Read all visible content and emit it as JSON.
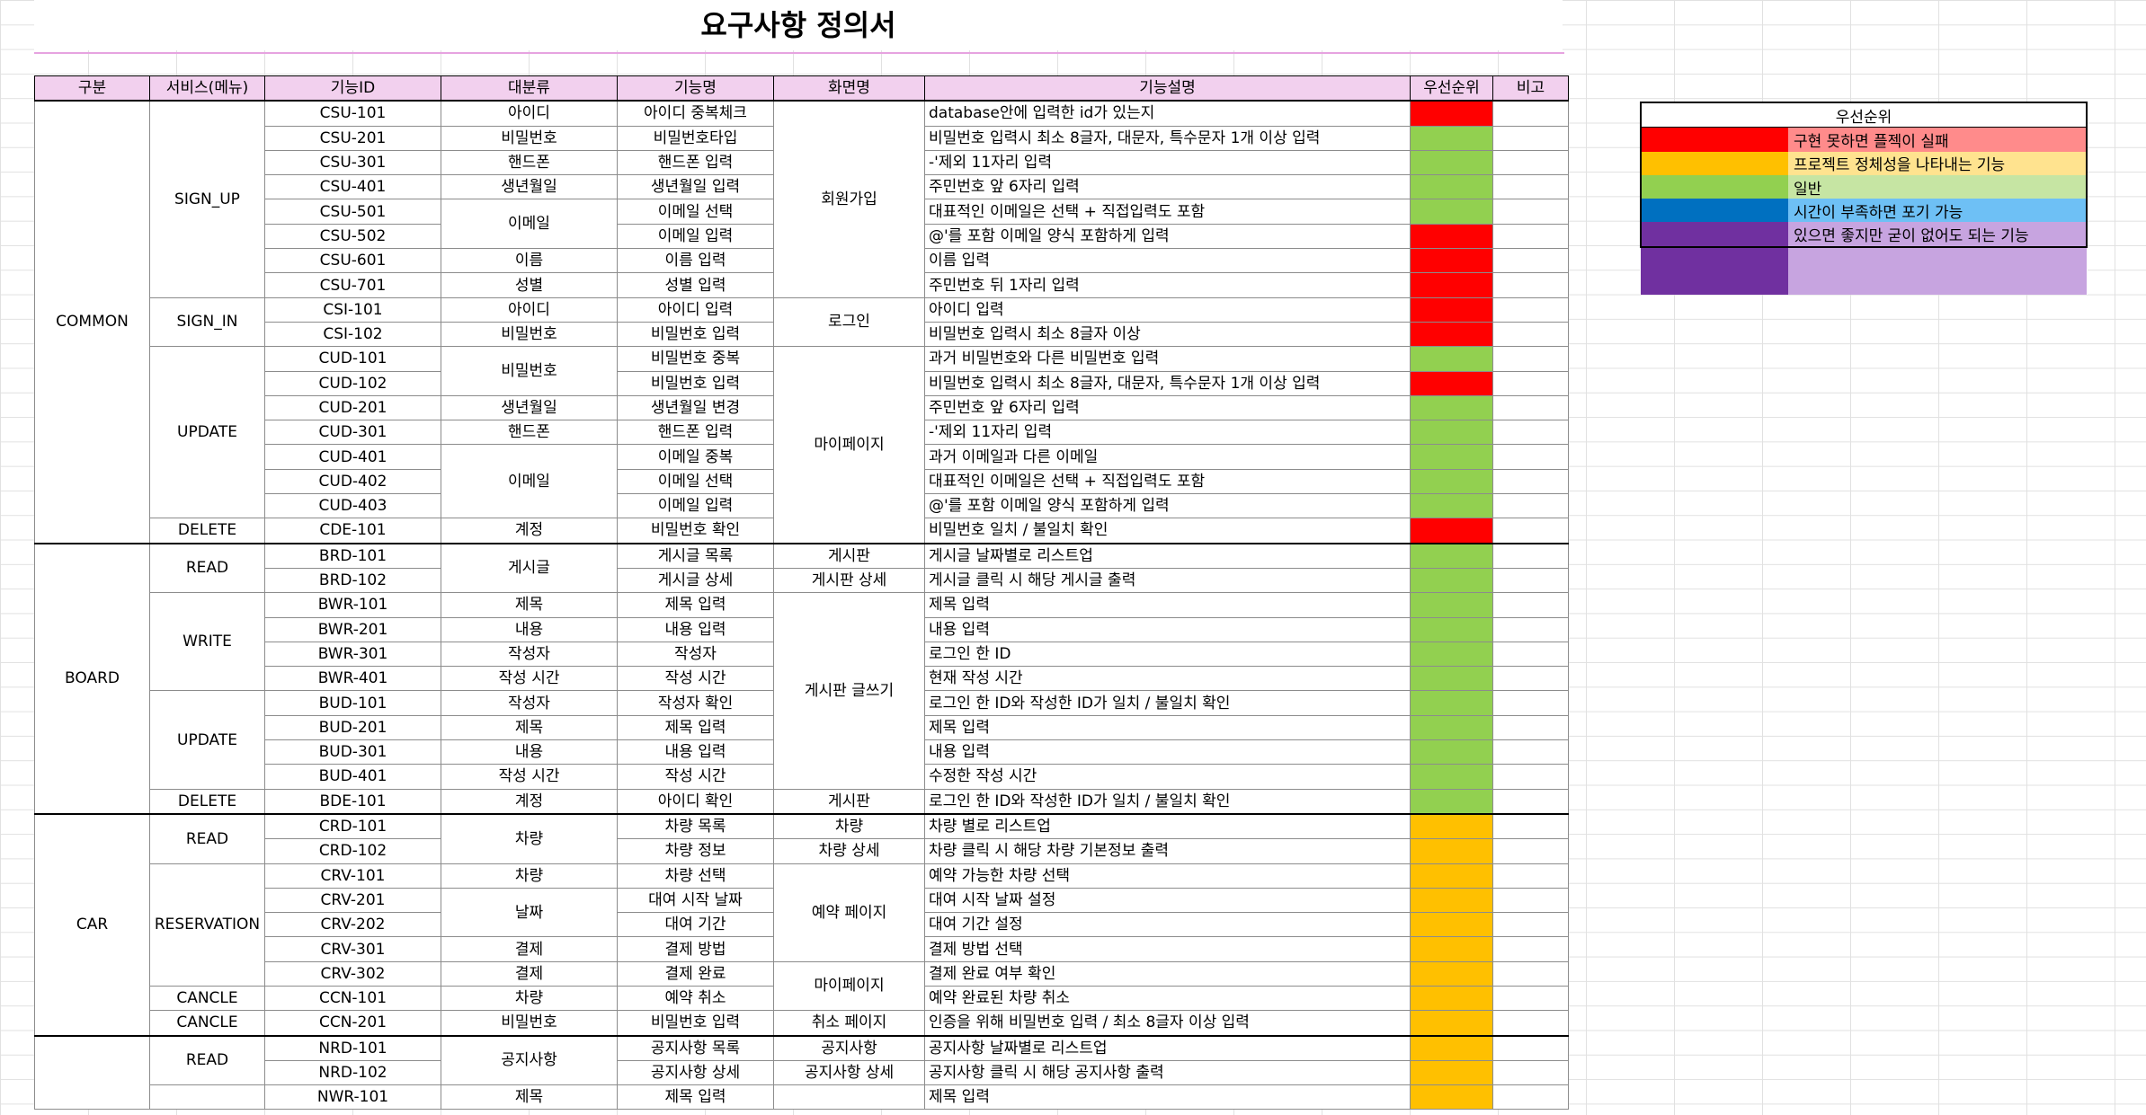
{
  "title": "요구사항 정의서",
  "colors": {
    "red": "#ff0000",
    "orange": "#ffc000",
    "green": "#92d050",
    "blue": "#0070c0",
    "purple": "#7030a0"
  },
  "legend": {
    "title": "우선순위",
    "items": [
      {
        "label": "구현 못하면 플젝이 실패",
        "color": "#ff0000",
        "tint": "#ff8b8b"
      },
      {
        "label": "프로젝트 정체성을 나타내는 기능",
        "color": "#ffc000",
        "tint": "#ffe38f"
      },
      {
        "label": "일반",
        "color": "#92d050",
        "tint": "#c6e5a3"
      },
      {
        "label": "시간이 부족하면 포기 가능",
        "color": "#0070c0",
        "tint": "#6ec0f5"
      },
      {
        "label": "있으면 좋지만 굳이 없어도 되는 기능",
        "color": "#7030a0",
        "tint": "#c7a4e0"
      }
    ]
  },
  "table": {
    "headers": [
      "구분",
      "서비스(메뉴)",
      "기능ID",
      "대분류",
      "기능명",
      "화면명",
      "기능설명",
      "우선순위",
      "비고"
    ],
    "groups": [
      {
        "name": "COMMON",
        "services": [
          {
            "name": "SIGN_UP",
            "rows": [
              {
                "id": "CSU-101",
                "cat": "아이디",
                "func": "아이디 중복체크",
                "screen": "회원가입",
                "desc": "database안에 입력한 id가 있는지",
                "pri": "red"
              },
              {
                "id": "CSU-201",
                "cat": "비밀번호",
                "func": "비밀번호타입",
                "desc": "비밀번호 입력시 최소 8글자, 대문자, 특수문자 1개 이상 입력",
                "pri": "green"
              },
              {
                "id": "CSU-301",
                "cat": "핸드폰",
                "func": "핸드폰 입력",
                "desc": "-'제외 11자리 입력",
                "pri": "green"
              },
              {
                "id": "CSU-401",
                "cat": "생년월일",
                "func": "생년월일 입력",
                "desc": "주민번호 앞 6자리 입력",
                "pri": "green"
              },
              {
                "id": "CSU-501",
                "cat": "이메일",
                "func": "이메일 선택",
                "desc": "대표적인 이메일은 선택 + 직접입력도 포함",
                "pri": "green"
              },
              {
                "id": "CSU-502",
                "func": "이메일 입력",
                "desc": "@'를 포함 이메일 양식 포함하게 입력",
                "pri": "red"
              },
              {
                "id": "CSU-601",
                "cat": "이름",
                "func": "이름 입력",
                "desc": "이름 입력",
                "pri": "red"
              },
              {
                "id": "CSU-701",
                "cat": "성별",
                "func": "성별 입력",
                "desc": "주민번호 뒤 1자리 입력",
                "pri": "red"
              }
            ]
          },
          {
            "name": "SIGN_IN",
            "rows": [
              {
                "id": "CSI-101",
                "cat": "아이디",
                "func": "아이디 입력",
                "screen": "로그인",
                "desc": "아이디 입력",
                "pri": "red"
              },
              {
                "id": "CSI-102",
                "cat": "비밀번호",
                "func": "비밀번호 입력",
                "desc": "비밀번호 입력시 최소 8글자 이상",
                "pri": "red"
              }
            ]
          },
          {
            "name": "UPDATE",
            "rows": [
              {
                "id": "CUD-101",
                "cat": "비밀번호",
                "func": "비밀번호 중복",
                "screen": "마이페이지",
                "desc": "과거 비밀번호와 다른 비밀번호 입력",
                "pri": "green"
              },
              {
                "id": "CUD-102",
                "func": "비밀번호 입력",
                "desc": "비밀번호 입력시 최소 8글자, 대문자, 특수문자 1개 이상 입력",
                "pri": "red"
              },
              {
                "id": "CUD-201",
                "cat": "생년월일",
                "func": "생년월일 변경",
                "desc": "주민번호 앞 6자리 입력",
                "pri": "green"
              },
              {
                "id": "CUD-301",
                "cat": "핸드폰",
                "func": "핸드폰 입력",
                "desc": "-'제외 11자리 입력",
                "pri": "green"
              },
              {
                "id": "CUD-401",
                "cat": "이메일",
                "func": "이메일 중복",
                "desc": "과거 이메일과 다른 이메일",
                "pri": "green"
              },
              {
                "id": "CUD-402",
                "func": "이메일 선택",
                "desc": "대표적인 이메일은 선택 + 직접입력도 포함",
                "pri": "green"
              },
              {
                "id": "CUD-403",
                "func": "이메일 입력",
                "desc": "@'를 포함 이메일 양식 포함하게 입력",
                "pri": "green"
              }
            ]
          },
          {
            "name": "DELETE",
            "rows": [
              {
                "id": "CDE-101",
                "cat": "계정",
                "func": "비밀번호 확인",
                "desc": "비밀번호 일치 / 불일치 확인",
                "pri": "red"
              }
            ]
          }
        ]
      },
      {
        "name": "BOARD",
        "services": [
          {
            "name": "READ",
            "rows": [
              {
                "id": "BRD-101",
                "cat": "게시글",
                "func": "게시글 목록",
                "screen": "게시판",
                "desc": "게시글 날짜별로 리스트업",
                "pri": "green"
              },
              {
                "id": "BRD-102",
                "func": "게시글 상세",
                "screen": "게시판 상세",
                "desc": "게시글 클릭 시 해당 게시글 출력",
                "pri": "green"
              }
            ]
          },
          {
            "name": "WRITE",
            "rows": [
              {
                "id": "BWR-101",
                "cat": "제목",
                "func": "제목 입력",
                "screen": "게시판 글쓰기",
                "desc": "제목 입력",
                "pri": "green"
              },
              {
                "id": "BWR-201",
                "cat": "내용",
                "func": "내용 입력",
                "desc": "내용 입력",
                "pri": "green"
              },
              {
                "id": "BWR-301",
                "cat": "작성자",
                "func": "작성자",
                "desc": "로그인 한 ID",
                "pri": "green"
              },
              {
                "id": "BWR-401",
                "cat": "작성 시간",
                "func": "작성 시간",
                "desc": "현재 작성 시간",
                "pri": "green"
              }
            ]
          },
          {
            "name": "UPDATE",
            "rows": [
              {
                "id": "BUD-101",
                "cat": "작성자",
                "func": "작성자 확인",
                "desc": "로그인 한 ID와 작성한 ID가 일치 / 불일치 확인",
                "pri": "green"
              },
              {
                "id": "BUD-201",
                "cat": "제목",
                "func": "제목 입력",
                "desc": "제목 입력",
                "pri": "green"
              },
              {
                "id": "BUD-301",
                "cat": "내용",
                "func": "내용 입력",
                "desc": "내용 입력",
                "pri": "green"
              },
              {
                "id": "BUD-401",
                "cat": "작성 시간",
                "func": "작성 시간",
                "desc": "수정한 작성 시간",
                "pri": "green"
              }
            ]
          },
          {
            "name": "DELETE",
            "rows": [
              {
                "id": "BDE-101",
                "cat": "계정",
                "func": "아이디 확인",
                "screen": "게시판",
                "desc": "로그인 한 ID와 작성한 ID가 일치 / 불일치 확인",
                "pri": "green"
              }
            ]
          }
        ]
      },
      {
        "name": "CAR",
        "services": [
          {
            "name": "READ",
            "rows": [
              {
                "id": "CRD-101",
                "cat": "차량",
                "func": "차량 목록",
                "screen": "차량",
                "desc": "차량 별로 리스트업",
                "pri": "orange"
              },
              {
                "id": "CRD-102",
                "func": "차량 정보",
                "screen": "차량 상세",
                "desc": "차량 클릭 시 해당 차량 기본정보 출력",
                "pri": "orange"
              }
            ]
          },
          {
            "name": "RESERVATION",
            "rows": [
              {
                "id": "CRV-101",
                "cat": "차량",
                "func": "차량 선택",
                "screen": "예약 페이지",
                "desc": "예약 가능한 차량 선택",
                "pri": "orange"
              },
              {
                "id": "CRV-201",
                "cat": "날짜",
                "func": "대여 시작 날짜",
                "desc": "대여 시작 날짜 설정",
                "pri": "orange"
              },
              {
                "id": "CRV-202",
                "func": "대여 기간",
                "desc": "대여 기간 설정",
                "pri": "orange"
              },
              {
                "id": "CRV-301",
                "cat": "결제",
                "func": "결제 방법",
                "desc": "결제 방법 선택",
                "pri": "orange"
              },
              {
                "id": "CRV-302",
                "cat": "결제",
                "func": "결제 완료",
                "screen": "마이페이지",
                "desc": "결제 완료 여부 확인",
                "pri": "orange"
              }
            ]
          },
          {
            "name": "CANCLE",
            "rows": [
              {
                "id": "CCN-101",
                "cat": "차량",
                "func": "예약 취소",
                "desc": "예약 완료된 차량 취소",
                "pri": "orange"
              }
            ]
          },
          {
            "name": "CANCLE",
            "rows": [
              {
                "id": "CCN-201",
                "cat": "비밀번호",
                "func": "비밀번호 입력",
                "screen": "취소 페이지",
                "desc": "인증을 위해 비밀번호 입력 / 최소 8글자 이상 입력",
                "pri": "orange"
              }
            ]
          }
        ]
      },
      {
        "name": "",
        "services": [
          {
            "name": "READ",
            "rows": [
              {
                "id": "NRD-101",
                "cat": "공지사항",
                "func": "공지사항 목록",
                "screen": "공지사항",
                "desc": "공지사항 날짜별로 리스트업",
                "pri": "orange"
              },
              {
                "id": "NRD-102",
                "func": "공지사항 상세",
                "screen": "공지사항 상세",
                "desc": "공지사항 클릭 시 해당 공지사항 출력",
                "pri": "orange"
              }
            ]
          },
          {
            "name": "",
            "rows": [
              {
                "id": "NWR-101",
                "cat": "제목",
                "func": "제목 입력",
                "desc": "제목 입력",
                "pri": "orange"
              }
            ]
          }
        ]
      }
    ]
  }
}
